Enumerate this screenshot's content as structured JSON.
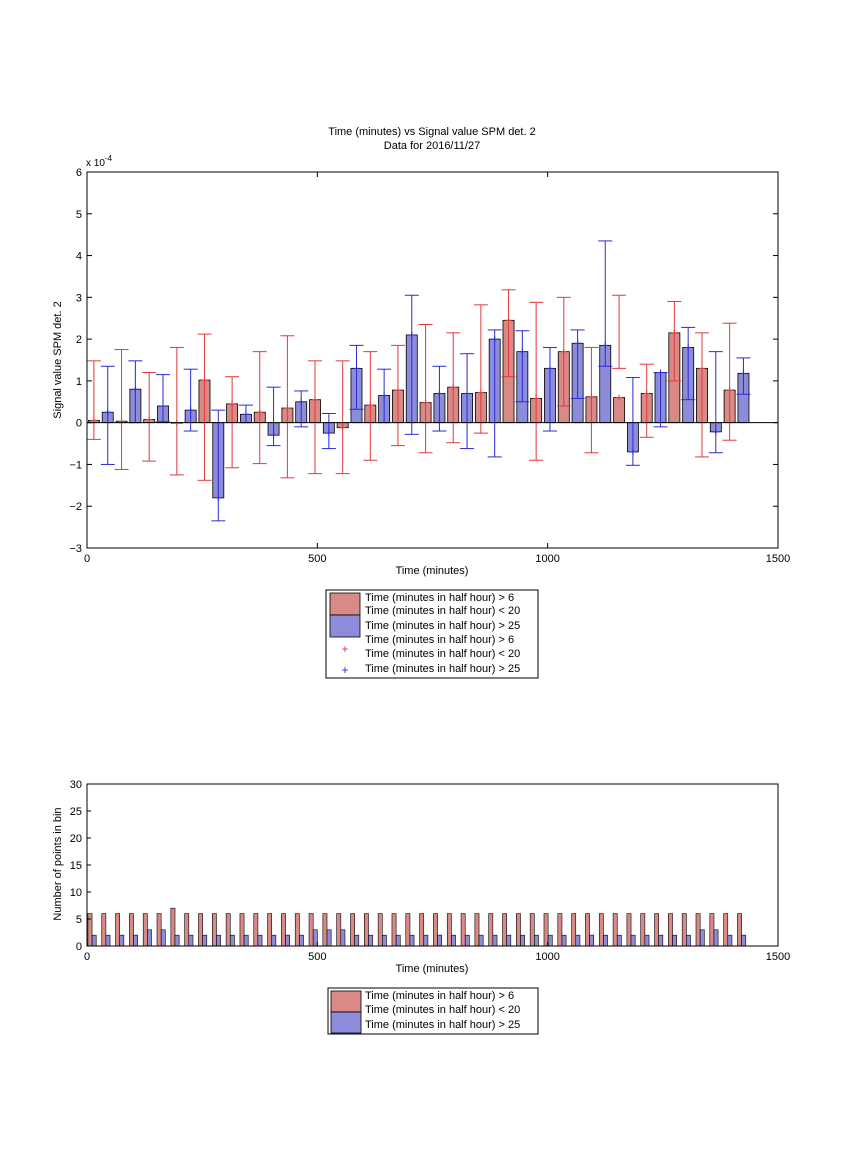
{
  "figure": {
    "title_line1": "Time (minutes) vs Signal value SPM det. 2",
    "title_line2": "Data for 2016/11/27"
  },
  "colors": {
    "red_bar_fill": "#d98986",
    "red_errorbar": "#e03a3a",
    "blue_bar_fill": "#8c8cdb",
    "blue_errorbar": "#2a2ad6",
    "axis": "#000000"
  },
  "chart_data": [
    {
      "type": "bar",
      "xlabel": "Time (minutes)",
      "ylabel": "Signal value SPM det. 2",
      "y_exponent_label": "x 10",
      "y_exponent_power": "-4",
      "xlim": [
        0,
        1500
      ],
      "ylim": [
        -0.0003,
        0.0006
      ],
      "xticks": [
        "0",
        "500",
        "1000",
        "1500"
      ],
      "yticks": [
        "−3",
        "−2",
        "−1",
        "0",
        "1",
        "2",
        "3",
        "4",
        "5",
        "6"
      ],
      "grid": false,
      "legend_position": "below",
      "legend": [
        {
          "kind": "patch",
          "series": "red",
          "line1": "Time (minutes in half hour) > 6",
          "line2": "Time (minutes in half hour) < 20"
        },
        {
          "kind": "patch",
          "series": "blue",
          "line1": "Time (minutes in half hour) > 25"
        },
        {
          "kind": "plus",
          "series": "red",
          "line1": "Time (minutes in half hour) > 6",
          "line2": "Time (minutes in half hour) < 20"
        },
        {
          "kind": "plus",
          "series": "blue",
          "line1": "Time (minutes in half hour) > 25"
        }
      ],
      "series": [
        {
          "name": "Time (minutes in half hour) > 6 / Time (minutes in half hour) < 20",
          "color": "red",
          "x": [
            15,
            75,
            135,
            195,
            255,
            315,
            375,
            435,
            495,
            555,
            615,
            675,
            735,
            795,
            855,
            915,
            975,
            1035,
            1095,
            1155,
            1215,
            1275,
            1335,
            1395
          ],
          "values": [
            0.055,
            0.035,
            0.075,
            -0.005,
            1.02,
            0.45,
            0.25,
            0.35,
            0.55,
            -0.12,
            0.42,
            0.78,
            0.48,
            0.85,
            0.72,
            2.45,
            0.58,
            1.7,
            0.62,
            0.6,
            0.7,
            2.15,
            1.3,
            0.78
          ],
          "mean": [
            0.055,
            0.035,
            0.075,
            -0.005,
            1.02,
            0.45,
            0.25,
            0.35,
            0.55,
            -0.12,
            0.42,
            0.78,
            0.48,
            0.85,
            0.72,
            2.45,
            0.58,
            1.7,
            0.62,
            0.6,
            0.7,
            2.15,
            1.3,
            0.78
          ],
          "err_low": [
            -0.4,
            -1.12,
            -0.92,
            -1.25,
            -1.38,
            -1.08,
            -0.98,
            -1.32,
            -1.22,
            -1.22,
            -0.9,
            -0.55,
            -0.72,
            -0.48,
            -0.25,
            1.1,
            -0.9,
            0.4,
            -0.72,
            1.3,
            -0.35,
            1.0,
            -0.82,
            -0.42
          ],
          "err_high": [
            1.48,
            1.75,
            1.2,
            1.8,
            2.12,
            1.1,
            1.7,
            2.08,
            1.48,
            1.48,
            1.7,
            1.85,
            2.35,
            2.15,
            2.82,
            3.18,
            2.88,
            3.0,
            1.8,
            3.05,
            1.4,
            2.9,
            2.15,
            2.38
          ]
        },
        {
          "name": "Time (minutes in half hour) > 25",
          "color": "blue",
          "x": [
            45,
            105,
            165,
            225,
            285,
            345,
            405,
            465,
            525,
            585,
            645,
            705,
            765,
            825,
            885,
            945,
            1005,
            1065,
            1125,
            1185,
            1245,
            1305,
            1365,
            1425
          ],
          "values": [
            0.25,
            0.8,
            0.4,
            0.3,
            -1.8,
            0.2,
            -0.3,
            0.5,
            -0.25,
            1.3,
            0.65,
            2.1,
            0.7,
            0.7,
            2.0,
            1.7,
            1.3,
            1.9,
            1.85,
            -0.7,
            1.2,
            1.8,
            -0.22,
            1.18
          ],
          "err_low": [
            -1.0,
            0.0,
            0.02,
            -0.2,
            -2.35,
            0.0,
            -0.55,
            -0.1,
            -0.62,
            0.32,
            0.0,
            -0.28,
            -0.2,
            -0.62,
            -0.82,
            0.5,
            -0.2,
            0.58,
            1.35,
            -1.02,
            -0.1,
            0.55,
            -0.72,
            0.68
          ],
          "err_high": [
            1.35,
            1.48,
            1.15,
            1.28,
            0.3,
            0.42,
            0.85,
            0.76,
            0.22,
            1.85,
            1.28,
            3.05,
            1.35,
            1.65,
            2.22,
            2.2,
            1.8,
            2.22,
            4.35,
            1.08,
            1.2,
            2.28,
            1.7,
            1.55
          ]
        }
      ]
    },
    {
      "type": "bar",
      "xlabel": "Time (minutes)",
      "ylabel": "Number of points in bin",
      "xlim": [
        0,
        1500
      ],
      "ylim": [
        0,
        30
      ],
      "xticks": [
        "0",
        "500",
        "1000",
        "1500"
      ],
      "yticks": [
        "0",
        "5",
        "10",
        "15",
        "20",
        "25",
        "30"
      ],
      "grid": false,
      "legend_position": "below",
      "legend": [
        {
          "kind": "patch",
          "series": "red",
          "line1": "Time (minutes in half hour) > 6",
          "line2": "Time (minutes in half hour) < 20"
        },
        {
          "kind": "patch",
          "series": "blue",
          "line1": "Time (minutes in half hour) > 25"
        }
      ],
      "bin_width_minutes": 30,
      "series": [
        {
          "name": "Time (minutes in half hour) > 6 / Time (minutes in half hour) < 20",
          "color": "red",
          "values": [
            6,
            6,
            6,
            6,
            6,
            6,
            7,
            6,
            6,
            6,
            6,
            6,
            6,
            6,
            6,
            6,
            6,
            6,
            6,
            6,
            6,
            6,
            6,
            6,
            6,
            6,
            6,
            6,
            6,
            6,
            6,
            6,
            6,
            6,
            6,
            6,
            6,
            6,
            6,
            6,
            6,
            6,
            6,
            6,
            6,
            6,
            6,
            6
          ]
        },
        {
          "name": "Time (minutes in half hour) > 25",
          "color": "blue",
          "values": [
            2,
            2,
            2,
            2,
            3,
            3,
            2,
            2,
            2,
            2,
            2,
            2,
            2,
            2,
            2,
            2,
            3,
            3,
            3,
            2,
            2,
            2,
            2,
            2,
            2,
            2,
            2,
            2,
            2,
            2,
            2,
            2,
            2,
            2,
            2,
            2,
            2,
            2,
            2,
            2,
            2,
            2,
            2,
            2,
            3,
            3,
            2,
            2
          ]
        }
      ]
    }
  ]
}
